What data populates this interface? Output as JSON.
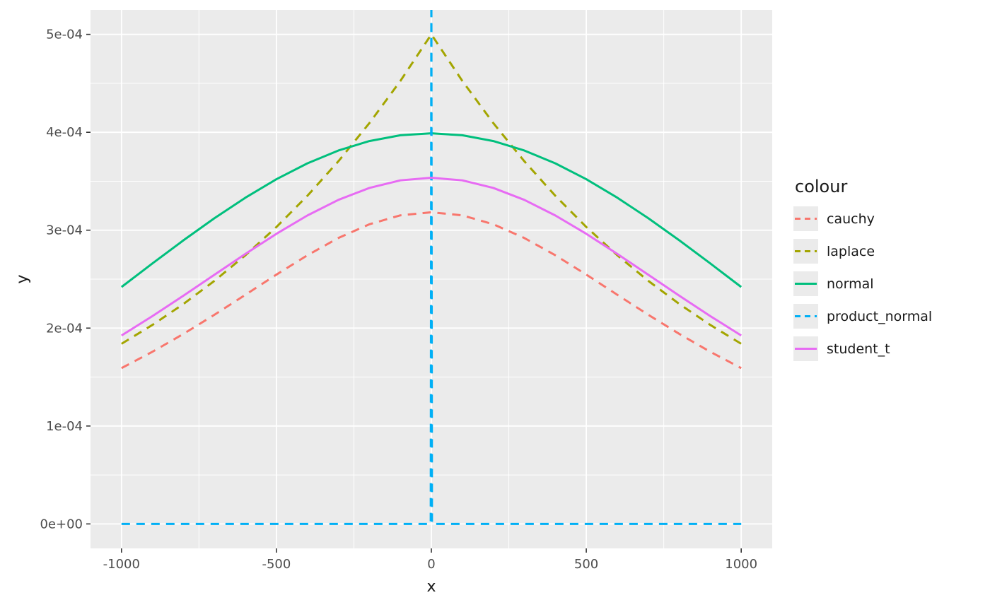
{
  "chart_data": {
    "type": "line",
    "title": "",
    "xlabel": "x",
    "ylabel": "y",
    "legend_title": "colour",
    "legend_position": "right",
    "grid": true,
    "panel_bg": "#EBEBEB",
    "grid_color": "#FFFFFF",
    "tick_color": "#333333",
    "tick_label_color": "#4D4D4D",
    "xlim": [
      -1100,
      1100
    ],
    "ylim": [
      -2.5e-05,
      0.000525
    ],
    "x_ticks": [
      -1000,
      -500,
      0,
      500,
      1000
    ],
    "x_tick_labels": [
      "-1000",
      "-500",
      "0",
      "500",
      "1000"
    ],
    "x_minor_ticks": [
      -750,
      -250,
      250,
      750
    ],
    "y_ticks": [
      0,
      0.0001,
      0.0002,
      0.0003,
      0.0004,
      0.0005
    ],
    "y_tick_labels": [
      "0e+00",
      "1e-04",
      "2e-04",
      "3e-04",
      "4e-04",
      "5e-04"
    ],
    "y_minor_ticks": [
      5e-05,
      0.00015,
      0.00025,
      0.00035,
      0.00045
    ],
    "series": [
      {
        "name": "cauchy",
        "color": "#F8766D",
        "linetype": "dashed",
        "x": [
          -1000,
          -900,
          -800,
          -700,
          -600,
          -500,
          -400,
          -300,
          -200,
          -100,
          0,
          100,
          200,
          300,
          400,
          500,
          600,
          700,
          800,
          900,
          1000
        ],
        "y": [
          0.00015915,
          0.00017586,
          0.00019409,
          0.00021363,
          0.00023405,
          0.00025465,
          0.00027441,
          0.00029203,
          0.00030607,
          0.00031516,
          0.00031831,
          0.00031516,
          0.00030607,
          0.00029203,
          0.00027441,
          0.00025465,
          0.00023405,
          0.00021363,
          0.00019409,
          0.00017586,
          0.00015915
        ]
      },
      {
        "name": "laplace",
        "color": "#A3A500",
        "linetype": "dashed",
        "x": [
          -1000,
          -900,
          -800,
          -700,
          -600,
          -500,
          -400,
          -300,
          -200,
          -100,
          0,
          100,
          200,
          300,
          400,
          500,
          600,
          700,
          800,
          900,
          1000
        ],
        "y": [
          0.00018394,
          0.00020329,
          0.00022466,
          0.00024829,
          0.00027441,
          0.00030327,
          0.00033516,
          0.00037041,
          0.00040937,
          0.00045242,
          0.0005,
          0.00045242,
          0.00040937,
          0.00037041,
          0.00033516,
          0.00030327,
          0.00027441,
          0.00024829,
          0.00022466,
          0.00020329,
          0.00018394
        ]
      },
      {
        "name": "normal",
        "color": "#00BF7D",
        "linetype": "solid",
        "x": [
          -1000,
          -900,
          -800,
          -700,
          -600,
          -500,
          -400,
          -300,
          -200,
          -100,
          0,
          100,
          200,
          300,
          400,
          500,
          600,
          700,
          800,
          900,
          1000
        ],
        "y": [
          0.00024197,
          0.00026609,
          0.00028969,
          0.00031225,
          0.00033322,
          0.00035207,
          0.00036827,
          0.00038138,
          0.00039104,
          0.00039695,
          0.00039894,
          0.00039695,
          0.00039104,
          0.00038138,
          0.00036827,
          0.00035207,
          0.00033322,
          0.00031225,
          0.00028969,
          0.00026609,
          0.00024197
        ]
      },
      {
        "name": "product_normal",
        "color": "#00B0F6",
        "linetype": "dashed",
        "x": [
          -1000,
          -12,
          -2,
          0,
          2,
          12,
          1000
        ],
        "y": [
          0,
          0,
          0,
          0.00056,
          0,
          0,
          0
        ]
      },
      {
        "name": "student_t",
        "color": "#E76BF3",
        "linetype": "solid",
        "x": [
          -1000,
          -900,
          -800,
          -700,
          -600,
          -500,
          -400,
          -300,
          -200,
          -100,
          0,
          100,
          200,
          300,
          400,
          500,
          600,
          700,
          800,
          900,
          1000
        ],
        "y": [
          0.00019245,
          0.00021231,
          0.00023313,
          0.0002545,
          0.00027579,
          0.0002963,
          0.00031504,
          0.00033096,
          0.00034317,
          0.00035091,
          0.00035355,
          0.00035091,
          0.00034317,
          0.00033096,
          0.00031504,
          0.0002963,
          0.00027579,
          0.0002545,
          0.00023313,
          0.00021231,
          0.00019245
        ]
      }
    ]
  }
}
